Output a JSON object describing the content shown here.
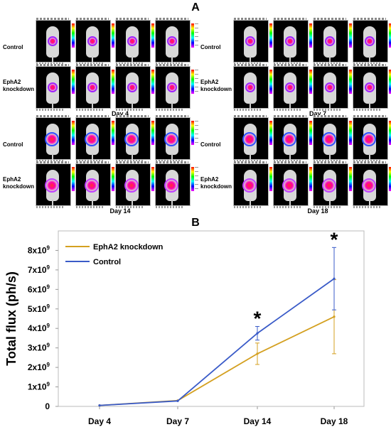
{
  "panel_a_label": "A",
  "panel_b_label": "B",
  "imaging": {
    "groups": [
      {
        "day": "Day 4",
        "rows": [
          "Control",
          "EphA2\nknockdown"
        ]
      },
      {
        "day": "Day 7",
        "rows": [
          "Control",
          "EphA2\nknockdown"
        ]
      },
      {
        "day": "Day 14",
        "rows": [
          "Control",
          "EphA2\nknockdown"
        ]
      },
      {
        "day": "Day 18",
        "rows": [
          "Control",
          "EphA2\nknockdown"
        ]
      }
    ]
  },
  "chart_data": {
    "type": "line",
    "categories": [
      "Day 4",
      "Day 7",
      "Day 14",
      "Day 18"
    ],
    "ylabel": "Total flux (ph/s)",
    "ylim": [
      0,
      9000000000.0
    ],
    "yticks": [
      0,
      1000000000.0,
      2000000000.0,
      3000000000.0,
      4000000000.0,
      5000000000.0,
      6000000000.0,
      7000000000.0,
      8000000000.0
    ],
    "ytick_labels": [
      "0",
      "1x10",
      "2x10",
      "3x10",
      "4x10",
      "5x10",
      "6x10",
      "7x10",
      "8x10"
    ],
    "ytick_exponent": "9",
    "legend_position": "top-left",
    "series": [
      {
        "name": "EphA2 knockdown",
        "color": "#D4A020",
        "values": [
          50000000.0,
          300000000.0,
          2700000000.0,
          4600000000.0
        ],
        "errors": [
          0,
          0,
          550000000.0,
          1900000000.0
        ]
      },
      {
        "name": "Control",
        "color": "#3A5BC8",
        "values": [
          50000000.0,
          280000000.0,
          3750000000.0,
          6550000000.0
        ],
        "errors": [
          0,
          0,
          350000000.0,
          1600000000.0
        ]
      }
    ],
    "annotations": [
      {
        "category": "Day 14",
        "text": "*"
      },
      {
        "category": "Day 18",
        "text": "*"
      }
    ]
  }
}
